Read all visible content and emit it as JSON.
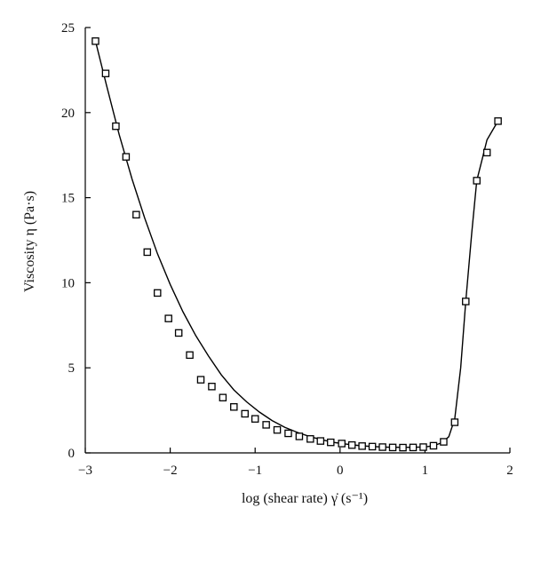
{
  "chart_data": {
    "type": "scatter",
    "title": "",
    "xlabel": "log (shear rate) γ̇ (s⁻¹)",
    "ylabel": "Viscosity η (Pa·s)",
    "xlim": [
      -3,
      2
    ],
    "ylim": [
      0,
      25
    ],
    "x_ticks": [
      -3,
      -2,
      -1,
      0,
      1,
      2
    ],
    "y_ticks": [
      0,
      5,
      10,
      15,
      20,
      25
    ],
    "x_tick_labels": [
      "−3",
      "−2",
      "−1",
      "0",
      "1",
      "2"
    ],
    "y_tick_labels": [
      "0",
      "5",
      "10",
      "15",
      "20",
      "25"
    ],
    "grid": false,
    "legend": "none",
    "series": [
      {
        "marker": "open-square",
        "points": [
          [
            -2.88,
            24.2
          ],
          [
            -2.76,
            22.3
          ],
          [
            -2.64,
            19.2
          ],
          [
            -2.52,
            17.4
          ],
          [
            -2.4,
            14.0
          ],
          [
            -2.27,
            11.8
          ],
          [
            -2.15,
            9.4
          ],
          [
            -2.02,
            7.9
          ],
          [
            -1.9,
            7.05
          ],
          [
            -1.77,
            5.75
          ],
          [
            -1.64,
            4.3
          ],
          [
            -1.51,
            3.9
          ],
          [
            -1.38,
            3.25
          ],
          [
            -1.25,
            2.7
          ],
          [
            -1.12,
            2.3
          ],
          [
            -1.0,
            2.0
          ],
          [
            -0.87,
            1.65
          ],
          [
            -0.74,
            1.35
          ],
          [
            -0.61,
            1.15
          ],
          [
            -0.48,
            0.97
          ],
          [
            -0.35,
            0.82
          ],
          [
            -0.23,
            0.7
          ],
          [
            -0.11,
            0.62
          ],
          [
            0.02,
            0.55
          ],
          [
            0.14,
            0.46
          ],
          [
            0.26,
            0.4
          ],
          [
            0.38,
            0.37
          ],
          [
            0.5,
            0.34
          ],
          [
            0.62,
            0.32
          ],
          [
            0.74,
            0.31
          ],
          [
            0.86,
            0.32
          ],
          [
            0.98,
            0.34
          ],
          [
            1.1,
            0.42
          ],
          [
            1.22,
            0.65
          ],
          [
            1.35,
            1.8
          ],
          [
            1.48,
            8.9
          ],
          [
            1.61,
            16.0
          ],
          [
            1.73,
            17.65
          ],
          [
            1.86,
            19.5
          ]
        ]
      },
      {
        "line": "fitted-curve",
        "points": [
          [
            -2.88,
            24.2
          ],
          [
            -2.75,
            21.6
          ],
          [
            -2.6,
            18.7
          ],
          [
            -2.45,
            16.1
          ],
          [
            -2.3,
            13.8
          ],
          [
            -2.15,
            11.7
          ],
          [
            -2.0,
            9.9
          ],
          [
            -1.85,
            8.3
          ],
          [
            -1.7,
            6.9
          ],
          [
            -1.55,
            5.7
          ],
          [
            -1.4,
            4.6
          ],
          [
            -1.25,
            3.7
          ],
          [
            -1.1,
            3.0
          ],
          [
            -0.95,
            2.4
          ],
          [
            -0.8,
            1.9
          ],
          [
            -0.65,
            1.5
          ],
          [
            -0.5,
            1.2
          ],
          [
            -0.35,
            0.95
          ],
          [
            -0.2,
            0.75
          ],
          [
            -0.05,
            0.6
          ],
          [
            0.1,
            0.5
          ],
          [
            0.25,
            0.42
          ],
          [
            0.4,
            0.37
          ],
          [
            0.55,
            0.34
          ],
          [
            0.7,
            0.33
          ],
          [
            0.85,
            0.33
          ],
          [
            1.0,
            0.35
          ],
          [
            1.1,
            0.42
          ],
          [
            1.2,
            0.6
          ],
          [
            1.28,
            0.95
          ],
          [
            1.35,
            2.0
          ],
          [
            1.42,
            5.0
          ],
          [
            1.48,
            8.9
          ],
          [
            1.55,
            12.9
          ],
          [
            1.61,
            16.0
          ],
          [
            1.67,
            17.2
          ],
          [
            1.73,
            18.4
          ],
          [
            1.8,
            19.0
          ],
          [
            1.86,
            19.5
          ]
        ]
      }
    ]
  }
}
